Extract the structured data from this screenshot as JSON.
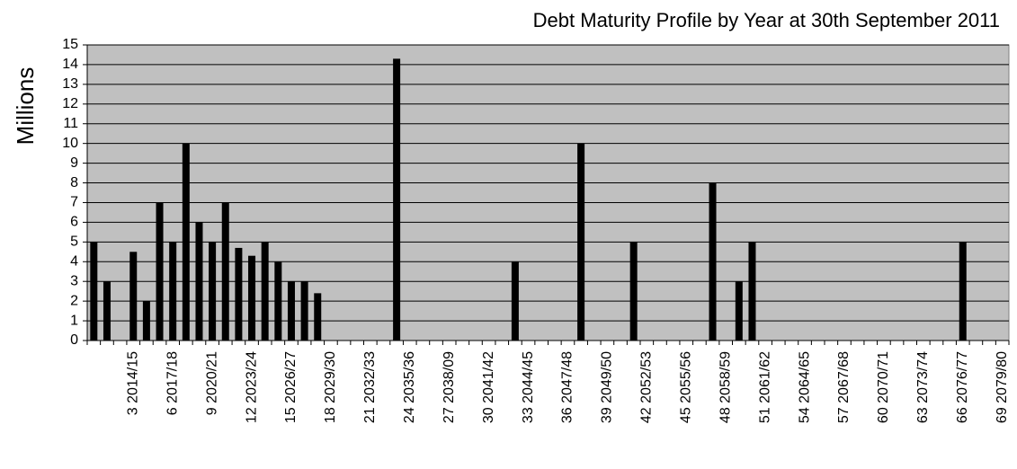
{
  "chart_data": {
    "type": "bar",
    "title": "Debt Maturity Profile by Year at 30th September 2011",
    "y_label": "Millions",
    "categories": [
      null,
      null,
      null,
      "3 2014/15",
      null,
      null,
      "6 2017/18",
      null,
      null,
      "9 2020/21",
      null,
      null,
      "12 2023/24",
      null,
      null,
      "15 2026/27",
      null,
      null,
      "18 2029/30",
      null,
      null,
      "21 2032/33",
      null,
      null,
      "24 2035/36",
      null,
      null,
      "27 2038/09",
      null,
      null,
      "30 2041/42",
      null,
      null,
      "33 2044/45",
      null,
      null,
      "36 2047/48",
      null,
      null,
      "39 2049/50",
      null,
      null,
      "42 2052/53",
      null,
      null,
      "45 2055/56",
      null,
      null,
      "48 2058/59",
      null,
      null,
      "51 2061/62",
      null,
      null,
      "54 2064/65",
      null,
      null,
      "57 2067/68",
      null,
      null,
      "60 2070/71",
      null,
      null,
      "63 2073/74",
      null,
      null,
      "66 2076/77",
      null,
      null,
      "69 2079/80"
    ],
    "values": [
      5,
      3,
      0,
      4.5,
      2,
      7,
      5,
      10,
      6,
      5,
      7,
      4.7,
      4.3,
      5,
      4,
      3,
      3,
      2.4,
      0,
      0,
      0,
      0,
      0,
      14.3,
      0,
      0,
      0,
      0,
      0,
      0,
      0,
      0,
      4,
      0,
      0,
      0,
      0,
      10,
      0,
      0,
      0,
      5,
      0,
      0,
      0,
      0,
      0,
      8,
      0,
      3,
      5,
      0,
      0,
      0,
      0,
      0,
      0,
      0,
      0,
      0,
      0,
      0,
      0,
      0,
      0,
      0,
      5,
      0,
      0,
      0
    ],
    "color": "#000000",
    "ylim": [
      0,
      15
    ],
    "yticks": [
      0,
      1,
      2,
      3,
      4,
      5,
      6,
      7,
      8,
      9,
      10,
      11,
      12,
      13,
      14,
      15
    ],
    "grid": true
  }
}
